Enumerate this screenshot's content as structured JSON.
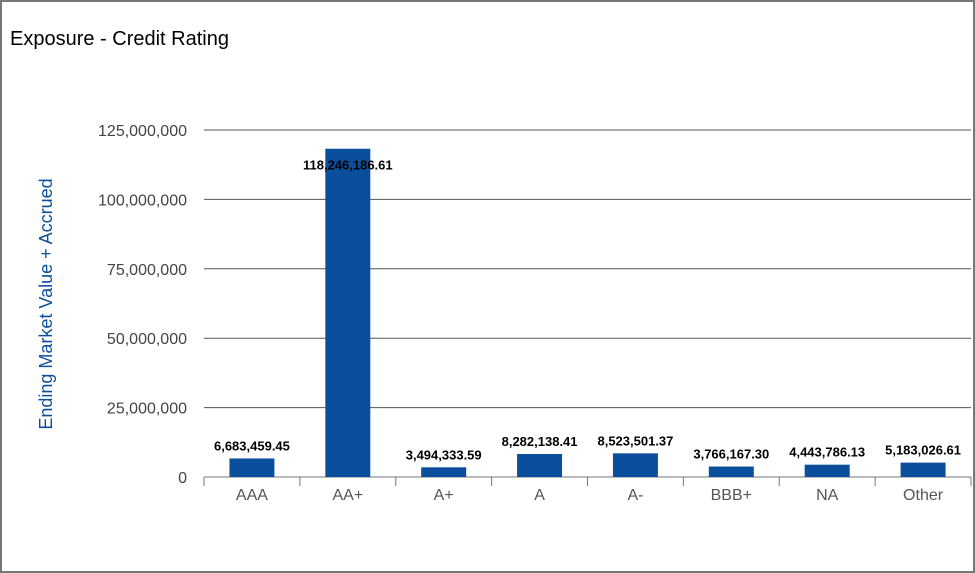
{
  "chart_data": {
    "type": "bar",
    "title": "Exposure - Credit Rating",
    "xlabel": "",
    "ylabel": "Ending Market Value + Accrued",
    "categories": [
      "AAA",
      "AA+",
      "A+",
      "A",
      "A-",
      "BBB+",
      "NA",
      "Other"
    ],
    "values": [
      6683459.45,
      118246186.61,
      3494333.59,
      8282138.41,
      8523501.37,
      3766167.3,
      4443786.13,
      5183026.61
    ],
    "value_labels": [
      "6,683,459.45",
      "118,246,186.61",
      "3,494,333.59",
      "8,282,138.41",
      "8,523,501.37",
      "3,766,167.30",
      "4,443,786.13",
      "5,183,026.61"
    ],
    "ylim": [
      0,
      125000000
    ],
    "yticks": [
      0,
      25000000,
      50000000,
      75000000,
      100000000,
      125000000
    ],
    "ytick_labels": [
      "0",
      "25,000,000",
      "50,000,000",
      "75,000,000",
      "100,000,000",
      "125,000,000"
    ],
    "bar_color": "#0b4f9c",
    "grid": true
  }
}
